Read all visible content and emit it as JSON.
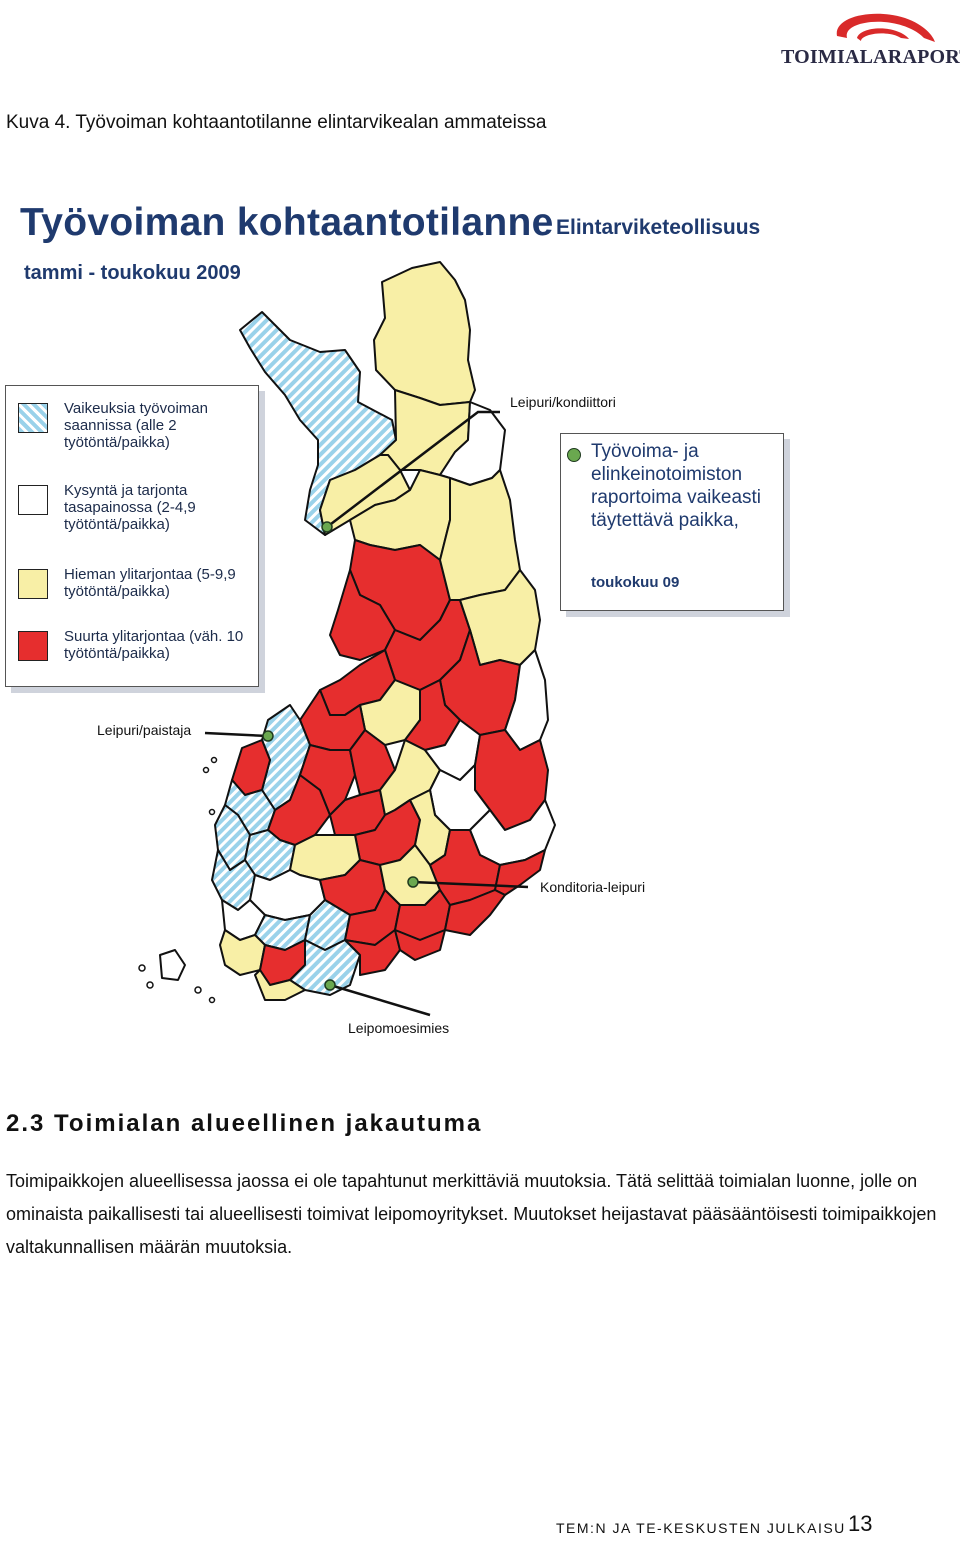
{
  "header": {
    "logo_text": "TOIMIALARAPORTIT",
    "figure_caption": "Kuva 4. Työvoiman kohtaantotilanne elintarvikealan ammateissa"
  },
  "map": {
    "title": "Työvoiman kohtaantotilanne",
    "subtitle": "Elintarviketeollisuus",
    "period": "tammi - toukokuu 2009",
    "legend": [
      {
        "label": "Vaikeuksia työvoiman saannissa (alle 2 työtöntä/paikka)",
        "color": "#9ad2ea",
        "pattern": "diagonal-hatch"
      },
      {
        "label": "Kysyntä ja tarjonta tasapainossa (2-4,9 työtöntä/paikka)",
        "color": "#ffffff"
      },
      {
        "label": "Hieman ylitarjontaa (5-9,9 työtöntä/paikka)",
        "color": "#f8efa6"
      },
      {
        "label": "Suurta ylitarjontaa (väh. 10 työtöntä/paikka)",
        "color": "#e62e2e"
      }
    ],
    "info_box": {
      "text": "Työvoima- ja elinkeinotoimiston raportoima vaikeasti täytettä­vä paikka,",
      "date": "toukokuu 09",
      "marker_color": "#6aa84f"
    },
    "callouts": {
      "leipuri_kondiittori": "Leipuri/kondiittori",
      "leipuri_paistaja": "Leipuri/paistaja",
      "konditoria_leipuri": "Konditoria-leipuri",
      "leipomoesimies": "Leipomoesimies"
    }
  },
  "section": {
    "heading": "2.3 Toimialan alueellinen jakautuma",
    "body": "Toimipaikkojen alueellisessa jaossa ei ole tapahtunut merkittäviä muutoksia. Tätä selittää toimialan luonne, jolle on ominaista paikallisesti tai alueellisesti toimivat leipomoyritykset. Muutokset heijastavat pääsääntöisesti toimipaikkojen valtakunnallisen määrän muutoksia."
  },
  "footer": {
    "label": "TEM:N JA TE-KESKUSTEN JULKAISU",
    "page": "13"
  }
}
